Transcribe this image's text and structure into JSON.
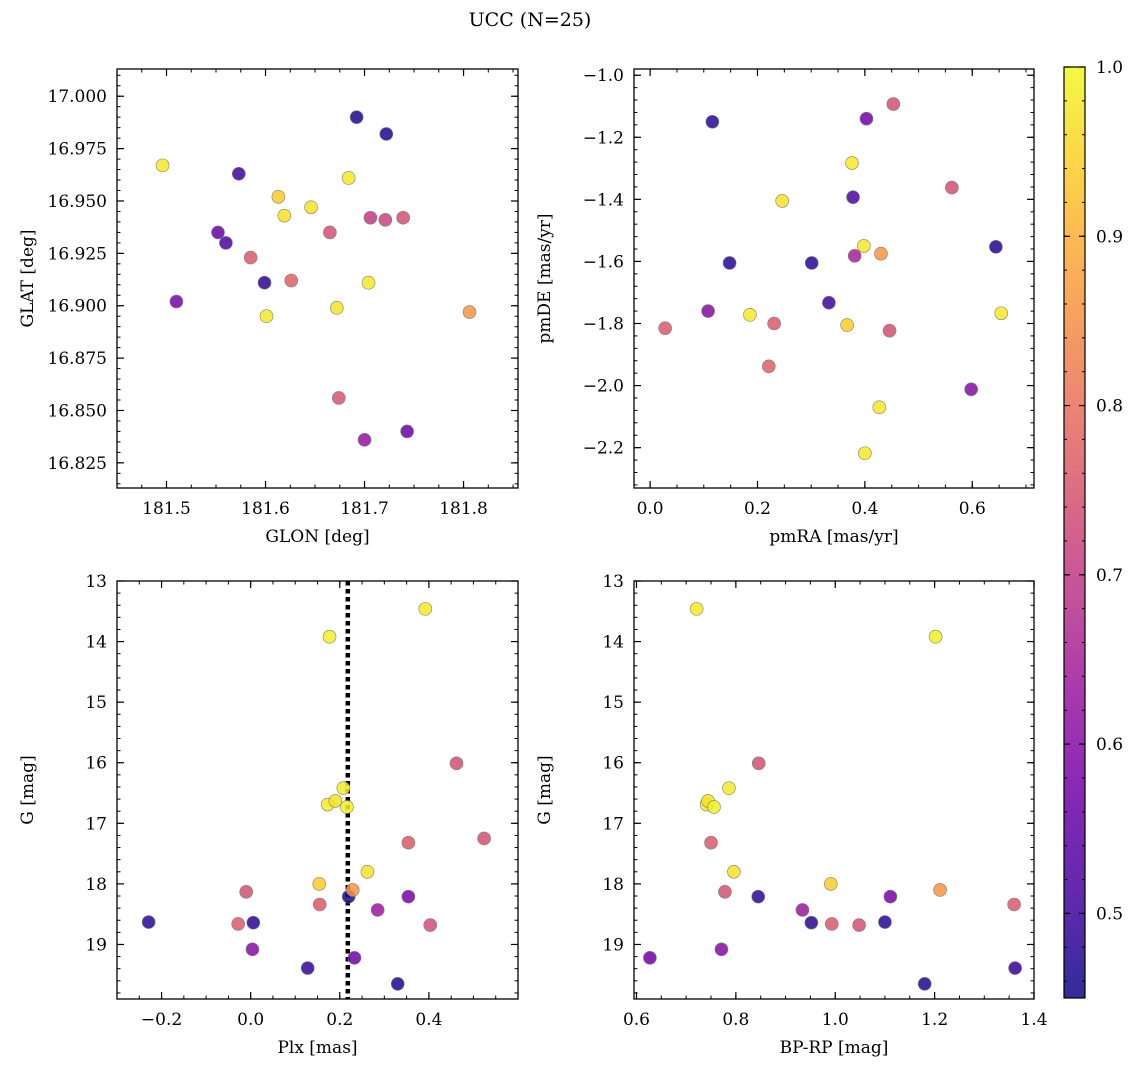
{
  "chart_data": [
    {
      "type": "scatter",
      "title": "UCC (N=25)",
      "xlabel": "GLON [deg]",
      "ylabel": "GLAT [deg]",
      "xlim": [
        181.45,
        181.855
      ],
      "ylim": [
        16.813,
        17.013
      ],
      "xticks": [
        181.5,
        181.6,
        181.7,
        181.8
      ],
      "xtick_labels": [
        "181.5",
        "181.6",
        "181.7",
        "181.8"
      ],
      "yticks": [
        16.825,
        16.85,
        16.875,
        16.9,
        16.925,
        16.95,
        16.975,
        17.0
      ],
      "ytick_labels": [
        "16.825",
        "16.850",
        "16.875",
        "16.900",
        "16.925",
        "16.950",
        "16.975",
        "17.000"
      ],
      "y_inverted": false,
      "points": [
        {
          "x": 181.496,
          "y": 16.967,
          "c": 0.98
        },
        {
          "x": 181.51,
          "y": 16.902,
          "c": 0.58
        },
        {
          "x": 181.552,
          "y": 16.935,
          "c": 0.55
        },
        {
          "x": 181.56,
          "y": 16.93,
          "c": 0.52
        },
        {
          "x": 181.573,
          "y": 16.963,
          "c": 0.5
        },
        {
          "x": 181.585,
          "y": 16.923,
          "c": 0.76
        },
        {
          "x": 181.599,
          "y": 16.911,
          "c": 0.48
        },
        {
          "x": 181.601,
          "y": 16.895,
          "c": 0.98
        },
        {
          "x": 181.613,
          "y": 16.952,
          "c": 0.94
        },
        {
          "x": 181.619,
          "y": 16.943,
          "c": 0.97
        },
        {
          "x": 181.626,
          "y": 16.912,
          "c": 0.77
        },
        {
          "x": 181.646,
          "y": 16.947,
          "c": 0.97
        },
        {
          "x": 181.665,
          "y": 16.935,
          "c": 0.74
        },
        {
          "x": 181.672,
          "y": 16.899,
          "c": 0.97
        },
        {
          "x": 181.674,
          "y": 16.856,
          "c": 0.75
        },
        {
          "x": 181.684,
          "y": 16.961,
          "c": 0.98
        },
        {
          "x": 181.692,
          "y": 16.99,
          "c": 0.47
        },
        {
          "x": 181.7,
          "y": 16.836,
          "c": 0.62
        },
        {
          "x": 181.704,
          "y": 16.911,
          "c": 0.98
        },
        {
          "x": 181.706,
          "y": 16.942,
          "c": 0.7
        },
        {
          "x": 181.721,
          "y": 16.941,
          "c": 0.72
        },
        {
          "x": 181.722,
          "y": 16.982,
          "c": 0.47
        },
        {
          "x": 181.739,
          "y": 16.942,
          "c": 0.74
        },
        {
          "x": 181.743,
          "y": 16.84,
          "c": 0.56
        },
        {
          "x": 181.806,
          "y": 16.897,
          "c": 0.86
        }
      ]
    },
    {
      "type": "scatter",
      "xlabel": "pmRA [mas/yr]",
      "ylabel": "pmDE [mas/yr]",
      "xlim": [
        -0.03,
        0.715
      ],
      "ylim": [
        -2.33,
        -0.98
      ],
      "xticks": [
        0.0,
        0.2,
        0.4,
        0.6
      ],
      "xtick_labels": [
        "0.0",
        "0.2",
        "0.4",
        "0.6"
      ],
      "yticks": [
        -2.2,
        -2.0,
        -1.8,
        -1.6,
        -1.4,
        -1.2,
        -1.0
      ],
      "ytick_labels": [
        "−2.2",
        "−2.0",
        "−1.8",
        "−1.6",
        "−1.4",
        "−1.2",
        "−1.0"
      ],
      "y_inverted": false,
      "points": [
        {
          "x": 0.028,
          "y": -1.815,
          "c": 0.76
        },
        {
          "x": 0.108,
          "y": -1.76,
          "c": 0.6
        },
        {
          "x": 0.116,
          "y": -1.15,
          "c": 0.48
        },
        {
          "x": 0.148,
          "y": -1.605,
          "c": 0.48
        },
        {
          "x": 0.186,
          "y": -1.772,
          "c": 0.98
        },
        {
          "x": 0.221,
          "y": -1.938,
          "c": 0.77
        },
        {
          "x": 0.231,
          "y": -1.8,
          "c": 0.76
        },
        {
          "x": 0.246,
          "y": -1.405,
          "c": 0.97
        },
        {
          "x": 0.301,
          "y": -1.605,
          "c": 0.48
        },
        {
          "x": 0.333,
          "y": -1.733,
          "c": 0.5
        },
        {
          "x": 0.367,
          "y": -1.805,
          "c": 0.94
        },
        {
          "x": 0.376,
          "y": -1.283,
          "c": 0.98
        },
        {
          "x": 0.378,
          "y": -1.393,
          "c": 0.52
        },
        {
          "x": 0.381,
          "y": -1.582,
          "c": 0.65
        },
        {
          "x": 0.398,
          "y": -1.55,
          "c": 0.98
        },
        {
          "x": 0.4,
          "y": -2.218,
          "c": 0.98
        },
        {
          "x": 0.403,
          "y": -1.14,
          "c": 0.57
        },
        {
          "x": 0.427,
          "y": -2.07,
          "c": 0.98
        },
        {
          "x": 0.43,
          "y": -1.575,
          "c": 0.86
        },
        {
          "x": 0.446,
          "y": -1.823,
          "c": 0.74
        },
        {
          "x": 0.453,
          "y": -1.093,
          "c": 0.74
        },
        {
          "x": 0.562,
          "y": -1.362,
          "c": 0.74
        },
        {
          "x": 0.598,
          "y": -2.012,
          "c": 0.6
        },
        {
          "x": 0.644,
          "y": -1.553,
          "c": 0.47
        },
        {
          "x": 0.654,
          "y": -1.767,
          "c": 0.98
        }
      ]
    },
    {
      "type": "scatter",
      "xlabel": "Plx [mas]",
      "ylabel": "G [mag]",
      "xlim": [
        -0.3,
        0.6
      ],
      "ylim": [
        19.9,
        13.0
      ],
      "xticks": [
        -0.2,
        0.0,
        0.2,
        0.4
      ],
      "xtick_labels": [
        "−0.2",
        "0.0",
        "0.2",
        "0.4"
      ],
      "yticks": [
        13,
        14,
        15,
        16,
        17,
        18,
        19
      ],
      "ytick_labels": [
        "13",
        "14",
        "15",
        "16",
        "17",
        "18",
        "19"
      ],
      "y_inverted": true,
      "vline": 0.218,
      "points": [
        {
          "x": -0.229,
          "y": 18.63,
          "c": 0.48
        },
        {
          "x": -0.028,
          "y": 18.66,
          "c": 0.76
        },
        {
          "x": -0.01,
          "y": 18.13,
          "c": 0.74
        },
        {
          "x": 0.004,
          "y": 19.08,
          "c": 0.6
        },
        {
          "x": 0.006,
          "y": 18.64,
          "c": 0.48
        },
        {
          "x": 0.128,
          "y": 19.39,
          "c": 0.49
        },
        {
          "x": 0.154,
          "y": 18.0,
          "c": 0.94
        },
        {
          "x": 0.155,
          "y": 18.34,
          "c": 0.76
        },
        {
          "x": 0.173,
          "y": 16.69,
          "c": 0.98
        },
        {
          "x": 0.177,
          "y": 13.92,
          "c": 0.99
        },
        {
          "x": 0.19,
          "y": 16.63,
          "c": 0.97
        },
        {
          "x": 0.208,
          "y": 16.42,
          "c": 0.98
        },
        {
          "x": 0.216,
          "y": 16.73,
          "c": 0.99
        },
        {
          "x": 0.22,
          "y": 18.21,
          "c": 0.47
        },
        {
          "x": 0.229,
          "y": 18.1,
          "c": 0.86
        },
        {
          "x": 0.233,
          "y": 19.22,
          "c": 0.57
        },
        {
          "x": 0.262,
          "y": 17.8,
          "c": 0.97
        },
        {
          "x": 0.285,
          "y": 18.43,
          "c": 0.63
        },
        {
          "x": 0.33,
          "y": 19.65,
          "c": 0.47
        },
        {
          "x": 0.354,
          "y": 17.32,
          "c": 0.76
        },
        {
          "x": 0.354,
          "y": 18.21,
          "c": 0.58
        },
        {
          "x": 0.392,
          "y": 13.46,
          "c": 0.98
        },
        {
          "x": 0.403,
          "y": 18.68,
          "c": 0.74
        },
        {
          "x": 0.462,
          "y": 16.01,
          "c": 0.74
        },
        {
          "x": 0.524,
          "y": 17.25,
          "c": 0.74
        }
      ]
    },
    {
      "type": "scatter",
      "xlabel": "BP-RP [mag]",
      "ylabel": "G [mag]",
      "xlim": [
        0.595,
        1.4
      ],
      "ylim": [
        19.9,
        13.0
      ],
      "xticks": [
        0.6,
        0.8,
        1.0,
        1.2,
        1.4
      ],
      "xtick_labels": [
        "0.6",
        "0.8",
        "1.0",
        "1.2",
        "1.4"
      ],
      "yticks": [
        13,
        14,
        15,
        16,
        17,
        18,
        19
      ],
      "ytick_labels": [
        "13",
        "14",
        "15",
        "16",
        "17",
        "18",
        "19"
      ],
      "y_inverted": true,
      "points": [
        {
          "x": 0.627,
          "y": 19.22,
          "c": 0.57
        },
        {
          "x": 0.721,
          "y": 13.46,
          "c": 0.98
        },
        {
          "x": 0.741,
          "y": 16.69,
          "c": 0.98
        },
        {
          "x": 0.744,
          "y": 16.63,
          "c": 0.97
        },
        {
          "x": 0.75,
          "y": 17.32,
          "c": 0.76
        },
        {
          "x": 0.756,
          "y": 16.73,
          "c": 0.99
        },
        {
          "x": 0.771,
          "y": 19.08,
          "c": 0.6
        },
        {
          "x": 0.778,
          "y": 18.13,
          "c": 0.74
        },
        {
          "x": 0.786,
          "y": 16.42,
          "c": 0.98
        },
        {
          "x": 0.796,
          "y": 17.8,
          "c": 0.97
        },
        {
          "x": 0.845,
          "y": 18.21,
          "c": 0.48
        },
        {
          "x": 0.846,
          "y": 16.01,
          "c": 0.74
        },
        {
          "x": 0.934,
          "y": 18.43,
          "c": 0.63
        },
        {
          "x": 0.952,
          "y": 18.64,
          "c": 0.48
        },
        {
          "x": 0.991,
          "y": 18.0,
          "c": 0.94
        },
        {
          "x": 0.993,
          "y": 18.66,
          "c": 0.76
        },
        {
          "x": 1.048,
          "y": 18.68,
          "c": 0.74
        },
        {
          "x": 1.1,
          "y": 18.63,
          "c": 0.48
        },
        {
          "x": 1.111,
          "y": 18.21,
          "c": 0.58
        },
        {
          "x": 1.18,
          "y": 19.65,
          "c": 0.47
        },
        {
          "x": 1.202,
          "y": 13.92,
          "c": 0.99
        },
        {
          "x": 1.211,
          "y": 18.1,
          "c": 0.86
        },
        {
          "x": 1.36,
          "y": 18.34,
          "c": 0.76
        },
        {
          "x": 1.362,
          "y": 19.39,
          "c": 0.49
        }
      ]
    }
  ],
  "colorbar": {
    "colormap": "plasma",
    "range": [
      0.45,
      1.0
    ],
    "ticks": [
      0.5,
      0.6,
      0.7,
      0.8,
      0.9,
      1.0
    ],
    "tick_labels": [
      "0.5",
      "0.6",
      "0.7",
      "0.8",
      "0.9",
      "1.0"
    ]
  },
  "colors": {
    "vline": "#000000",
    "marker_edge": "#7f7f7f",
    "cmap_stops": [
      "#0d0887",
      "#46039f",
      "#7201a8",
      "#9c179e",
      "#bd3786",
      "#d8576b",
      "#ed7953",
      "#fb9f3a",
      "#fdca26",
      "#f0f921"
    ]
  }
}
